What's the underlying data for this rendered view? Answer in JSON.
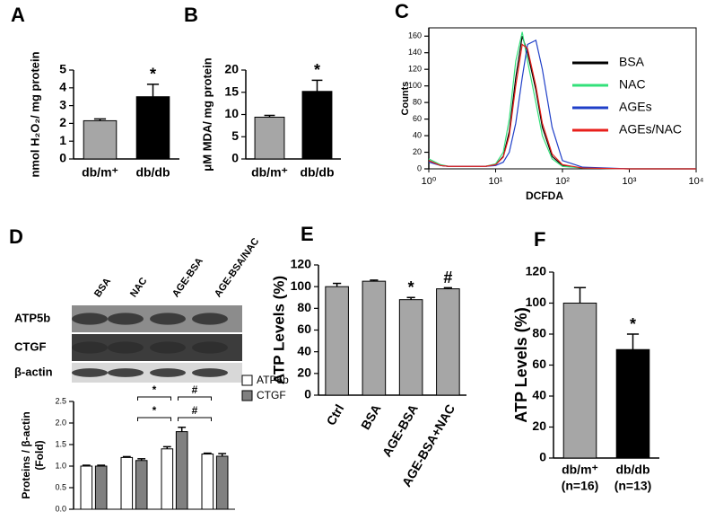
{
  "chart_data": [
    {
      "type": "bar",
      "panel": "A",
      "ylabel": "nmol H₂O₂/ mg protein",
      "categories": [
        "db/m⁺",
        "db/db"
      ],
      "values": [
        2.15,
        3.5
      ],
      "errors": [
        0.1,
        0.7
      ],
      "colors": [
        "#a6a6a6",
        "#000000"
      ],
      "annotations": [
        null,
        "*"
      ],
      "ylim": [
        0,
        5
      ],
      "yticks": [
        0,
        1,
        2,
        3,
        4,
        5
      ]
    },
    {
      "type": "bar",
      "panel": "B",
      "ylabel": "μM MDA/ mg protein",
      "categories": [
        "db/m⁺",
        "db/db"
      ],
      "values": [
        9.4,
        15.2
      ],
      "errors": [
        0.4,
        2.5
      ],
      "colors": [
        "#a6a6a6",
        "#000000"
      ],
      "annotations": [
        null,
        "*"
      ],
      "ylim": [
        0,
        20
      ],
      "yticks": [
        0,
        5,
        10,
        15,
        20
      ]
    },
    {
      "type": "line",
      "panel": "C",
      "xlabel": "DCFDA",
      "ylabel": "Counts",
      "xlog": true,
      "x": [
        1,
        1.5,
        2,
        3,
        5,
        7,
        10,
        13,
        16,
        20,
        25,
        30,
        40,
        50,
        70,
        100,
        200,
        1000,
        10000
      ],
      "series": [
        {
          "name": "BSA",
          "color": "#000000",
          "values": [
            10,
            4,
            3,
            3,
            3,
            3,
            5,
            15,
            45,
            110,
            160,
            140,
            95,
            50,
            15,
            4,
            1,
            0,
            0
          ]
        },
        {
          "name": "NAC",
          "color": "#33e07a",
          "values": [
            12,
            5,
            3,
            3,
            3,
            3,
            6,
            20,
            60,
            130,
            165,
            130,
            80,
            40,
            12,
            3,
            1,
            0,
            0
          ]
        },
        {
          "name": "AGEs",
          "color": "#1f3fc8",
          "values": [
            8,
            4,
            3,
            3,
            3,
            3,
            4,
            8,
            20,
            55,
            110,
            150,
            155,
            120,
            50,
            10,
            2,
            0,
            0
          ]
        },
        {
          "name": "AGEs/NAC",
          "color": "#e8201c",
          "values": [
            10,
            4,
            3,
            3,
            3,
            3,
            5,
            14,
            40,
            100,
            150,
            145,
            100,
            55,
            18,
            5,
            1,
            0,
            0
          ]
        }
      ],
      "xlim": [
        1,
        10000
      ],
      "xticks": [
        {
          "value": 1,
          "label": "10⁰"
        },
        {
          "value": 10,
          "label": "10¹"
        },
        {
          "value": 100,
          "label": "10²"
        },
        {
          "value": 1000,
          "label": "10³"
        },
        {
          "value": 10000,
          "label": "10⁴"
        }
      ],
      "ylim": [
        0,
        170
      ],
      "yticks": [
        0,
        20,
        40,
        60,
        80,
        100,
        120,
        140,
        160
      ]
    },
    {
      "type": "grouped_bar",
      "panel": "D",
      "ylabel": [
        "Proteins / β-actin",
        "(Fold)"
      ],
      "blot": {
        "lanes": [
          "BSA",
          "NAC",
          "AGE-BSA",
          "AGE-BSA/NAC"
        ],
        "rows": [
          "ATP5b",
          "CTGF",
          "β-actin"
        ]
      },
      "categories": [
        null,
        null,
        null,
        null
      ],
      "series": [
        {
          "name": "ATP5b",
          "color": "#ffffff",
          "values": [
            1.0,
            1.2,
            1.4,
            1.28
          ],
          "errors": [
            0.02,
            0.02,
            0.05,
            0.02
          ]
        },
        {
          "name": "CTGF",
          "color": "#808080",
          "values": [
            1.0,
            1.13,
            1.8,
            1.23
          ],
          "errors": [
            0.02,
            0.04,
            0.1,
            0.06
          ]
        }
      ],
      "annotations": [
        "*",
        "#",
        "*",
        "#"
      ],
      "ylim": [
        0,
        2.5
      ],
      "yticks": [
        {
          "value": 0,
          "label": "0.0"
        },
        {
          "value": 0.5,
          "label": "0.5"
        },
        {
          "value": 1,
          "label": "1.0"
        },
        {
          "value": 1.5,
          "label": "1.5"
        },
        {
          "value": 2,
          "label": "2.0"
        },
        {
          "value": 2.5,
          "label": "2.5"
        }
      ]
    },
    {
      "type": "bar",
      "panel": "E",
      "ylabel": "ATP Levels (%)",
      "categories": [
        "Ctrl",
        "BSA",
        "AGE-BSA",
        "AGE-BSA+NAC"
      ],
      "values": [
        100,
        105,
        88,
        98
      ],
      "errors": [
        3,
        1,
        2,
        1
      ],
      "colors": [
        "#a6a6a6",
        "#a6a6a6",
        "#a6a6a6",
        "#a6a6a6"
      ],
      "annotations": [
        null,
        null,
        "*",
        "#"
      ],
      "ylim": [
        0,
        120
      ],
      "yticks": [
        0,
        20,
        40,
        60,
        80,
        100,
        120
      ]
    },
    {
      "type": "bar",
      "panel": "F",
      "ylabel": "ATP Levels (%)",
      "categories": [
        "db/m⁺",
        "db/db"
      ],
      "n_labels": [
        "(n=16)",
        "(n=13)"
      ],
      "values": [
        100,
        70
      ],
      "errors": [
        10,
        10
      ],
      "colors": [
        "#a6a6a6",
        "#000000"
      ],
      "annotations": [
        null,
        "*"
      ],
      "ylim": [
        0,
        120
      ],
      "yticks": [
        0,
        20,
        40,
        60,
        80,
        100,
        120
      ]
    }
  ]
}
